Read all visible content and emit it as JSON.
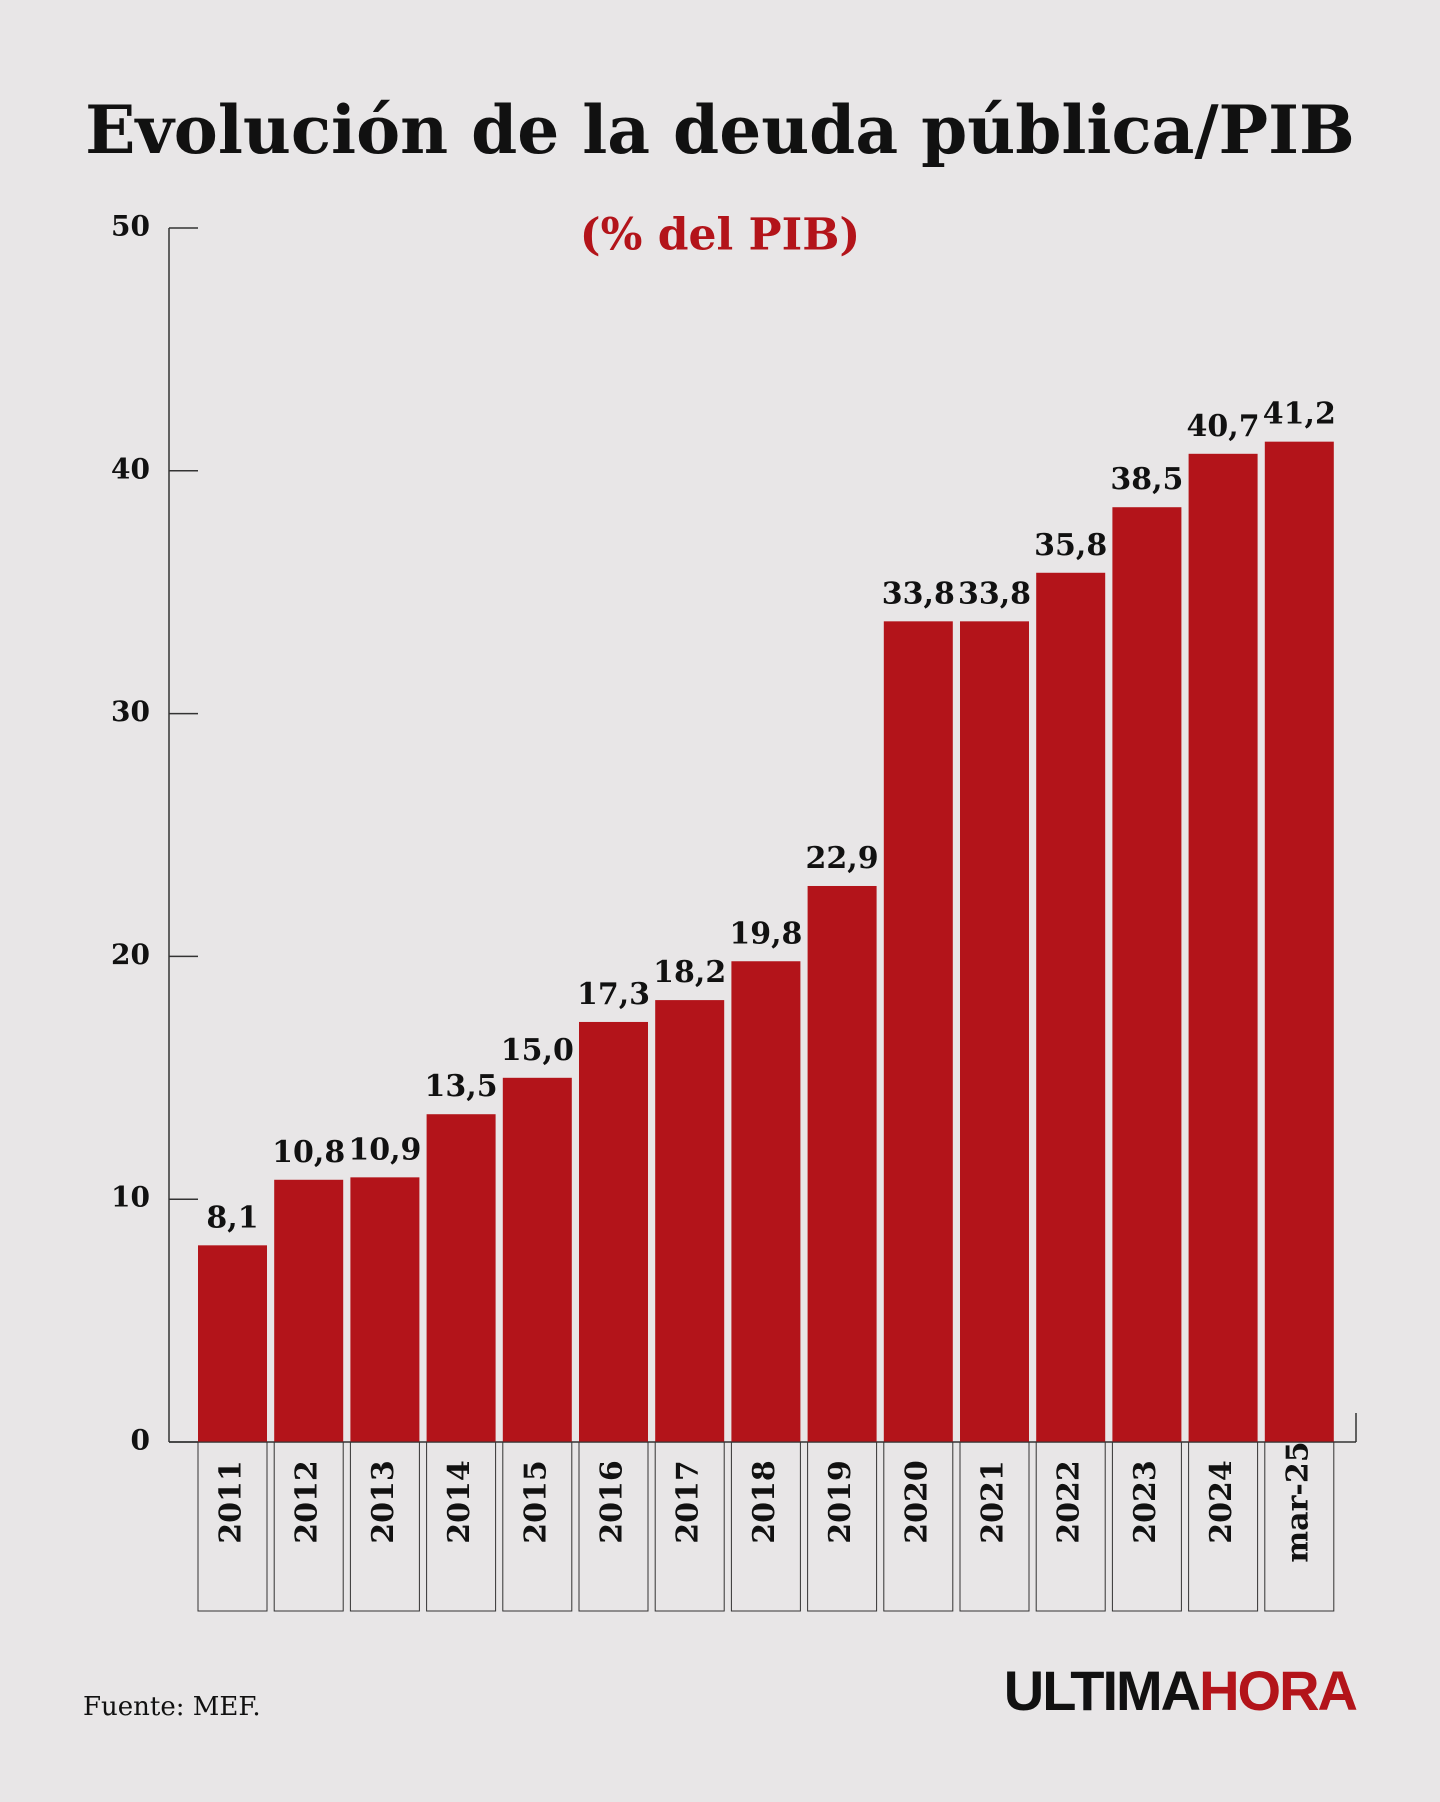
{
  "chart_data": {
    "type": "bar",
    "title": "Evolución de la deuda pública/PIB",
    "subtitle": "(% del PIB)",
    "categories": [
      "2011",
      "2012",
      "2013",
      "2014",
      "2015",
      "2016",
      "2017",
      "2018",
      "2019",
      "2020",
      "2021",
      "2022",
      "2023",
      "2024",
      "mar-25"
    ],
    "values": [
      8.1,
      10.8,
      10.9,
      13.5,
      15.0,
      17.3,
      18.2,
      19.8,
      22.9,
      33.8,
      33.8,
      35.8,
      38.5,
      40.7,
      41.2
    ],
    "value_labels": [
      "8,1",
      "10,8",
      "10,9",
      "13,5",
      "15,0",
      "17,3",
      "18,2",
      "19,8",
      "22,9",
      "33,8",
      "33,8",
      "35,8",
      "38,5",
      "40,7",
      "41,2"
    ],
    "color": "#b3141a",
    "ylim": [
      0,
      50
    ],
    "yticks": [
      0,
      10,
      20,
      30,
      40,
      50
    ],
    "grid": false,
    "source": "Fuente: MEF.",
    "brand": {
      "dark": "ULTIMA",
      "red": "HORA"
    }
  }
}
